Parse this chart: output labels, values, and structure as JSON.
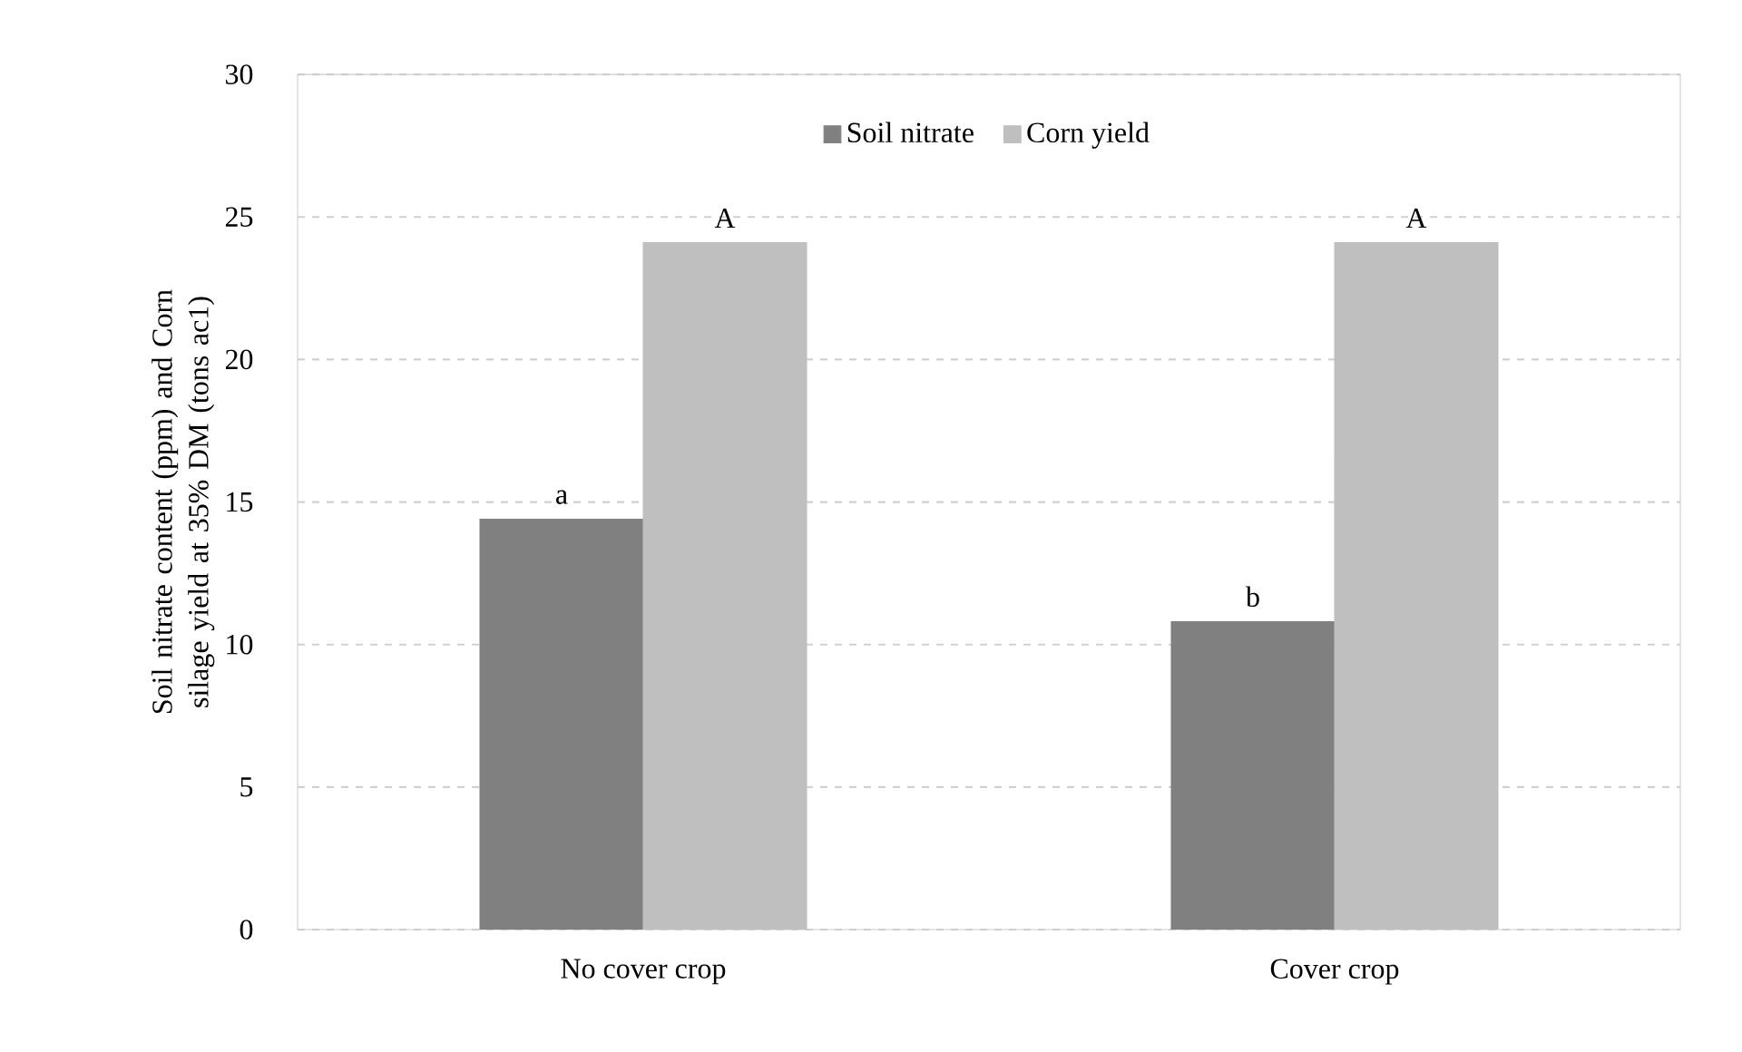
{
  "chart_data": {
    "type": "bar",
    "ylabel": "Soil nitrate content (ppm) and Corn silage yield at 35% DM (tons ac1)",
    "categories": [
      "No cover crop",
      "Cover crop"
    ],
    "series": [
      {
        "name": "Soil nitrate",
        "color": "#808080",
        "values": [
          14.4,
          10.8
        ]
      },
      {
        "name": "Corn yield",
        "color": "#bfbfbf",
        "values": [
          24.1,
          24.1
        ]
      }
    ],
    "ylim": [
      0,
      30
    ],
    "yticks": [
      0,
      5,
      10,
      15,
      20,
      25,
      30
    ],
    "grid": "y",
    "legend": "top",
    "annotations": [
      {
        "text": "a",
        "x": "No cover crop",
        "y": 14.4
      },
      {
        "text": "A",
        "x": "No cover crop",
        "y": 24.1
      },
      {
        "text": "b",
        "x": "Cover crop",
        "y": 10.8
      },
      {
        "text": "A",
        "x": "Cover crop",
        "y": 24.1
      }
    ]
  }
}
